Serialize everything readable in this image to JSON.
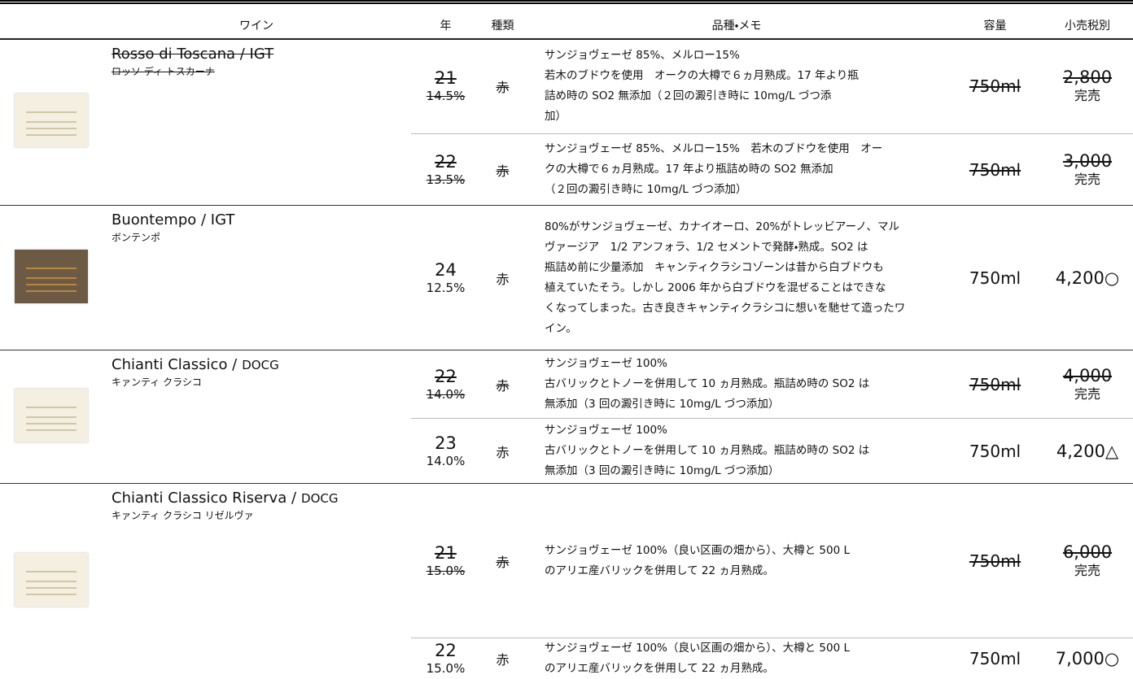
{
  "header": [
    "ワイン",
    "年",
    "種類",
    "品種・メモ",
    "容量",
    "小売税別"
  ],
  "wines": [
    {
      "name": "Rosso di Toscana / IGT",
      "kana": "ロッソ ディ トスカーナ",
      "struck": true,
      "vintages": [
        {
          "year": "21",
          "abv": "14.5%",
          "type": "赤",
          "struck": true,
          "notes": [
            "サンジョヴェーゼ 85%、メルロー15%",
            "若木のブドウを使用　オークの大樽で６ヵ月熟成。17 年より瓶",
            "詰め時の SO2 無添加（２回の澱引き時に 10mg/L づつ添",
            "加）"
          ],
          "volume": "750ml",
          "price": "2,800",
          "mark": "完売"
        },
        {
          "year": "22",
          "abv": "13.5%",
          "type": "赤",
          "struck": true,
          "notes": [
            "サンジョヴェーゼ 85%、メルロー15%　若木のブドウを使用　オー",
            "クの大樽で６ヵ月熟成。17 年より瓶詰め時の SO2 無添加",
            "（２回の澱引き時に 10mg/L づつ添加）"
          ],
          "volume": "750ml",
          "price": "3,000",
          "mark": "完売"
        }
      ]
    },
    {
      "name": "Buontempo / IGT",
      "kana": "ボンテンポ",
      "struck": false,
      "vintages": [
        {
          "year": "24",
          "abv": "12.5%",
          "type": "赤",
          "struck": false,
          "notes": [
            "80%がサンジョヴェーゼ、カナイオーロ、20%がトレッビアーノ、マル",
            "ヴァージア　1/2 アンフォラ、1/2 セメントで発酵・熟成。SO2 は",
            "瓶詰め前に少量添加　キャンティクラシコゾーンは昔から白ブドウも",
            "植えていたそう。しかし 2006 年から白ブドウを混ぜることはできな",
            "くなってしまった。古き良きキャンティクラシコに想いを馳せて造ったワ",
            "イン。"
          ],
          "volume": "750ml",
          "price": "4,200",
          "mark": "○"
        }
      ]
    },
    {
      "name": "Chianti Classico /",
      "class": "DOCG",
      "kana": "キァンティ クラシコ",
      "struck": false,
      "vintages": [
        {
          "year": "22",
          "abv": "14.0%",
          "type": "赤",
          "struck": true,
          "notes": [
            "サンジョヴェーゼ 100%",
            "古バリックとトノーを併用して 10 ヵ月熟成。瓶詰め時の SO2 は",
            "無添加（3 回の澱引き時に 10mg/L づつ添加）"
          ],
          "volume": "750ml",
          "price": "4,000",
          "mark": "完売"
        },
        {
          "year": "23",
          "abv": "14.0%",
          "type": "赤",
          "struck": false,
          "notes": [
            "サンジョヴェーゼ 100%",
            "古バリックとトノーを併用して 10 ヵ月熟成。瓶詰め時の SO2 は",
            "無添加（3 回の澱引き時に 10mg/L づつ添加）"
          ],
          "volume": "750ml",
          "price": "4,200",
          "mark": "△"
        }
      ]
    },
    {
      "name": "Chianti Classico Riserva /",
      "class": "DOCG",
      "kana": "キァンティ クラシコ リゼルヴァ",
      "struck": false,
      "vintages": [
        {
          "year": "21",
          "abv": "15.0%",
          "type": "赤",
          "struck": true,
          "notes": [
            "サンジョヴェーゼ 100%（良い区画の畑から）、大樽と 500 L",
            "のアリエ産バリックを併用して 22 ヵ月熟成。"
          ],
          "volume": "750ml",
          "price": "6,000",
          "mark": "完売"
        },
        {
          "year": "22",
          "abv": "15.0%",
          "type": "赤",
          "struck": false,
          "notes": [
            "サンジョヴェーゼ 100%（良い区画の畑から）、大樽と 500 L",
            "のアリエ産バリックを併用して 22 ヵ月熟成。"
          ],
          "volume": "750ml",
          "price": "7,000",
          "mark": "○"
        }
      ]
    }
  ]
}
